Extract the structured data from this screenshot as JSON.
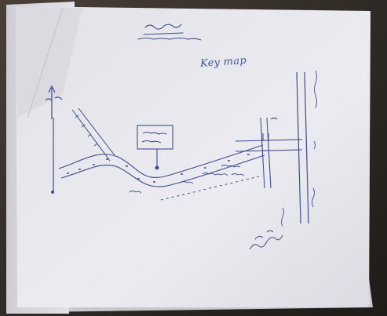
{
  "photo": {
    "subject": "hand-drawn-key-map-sketch",
    "key_map_label": "Key map"
  },
  "colors": {
    "paper": "#e9e8ee",
    "ink": "#3d4f8a",
    "background": "#3a342d"
  },
  "icons": {
    "north-arrow": "north-arrow-icon",
    "location-box": "location-box-icon"
  }
}
